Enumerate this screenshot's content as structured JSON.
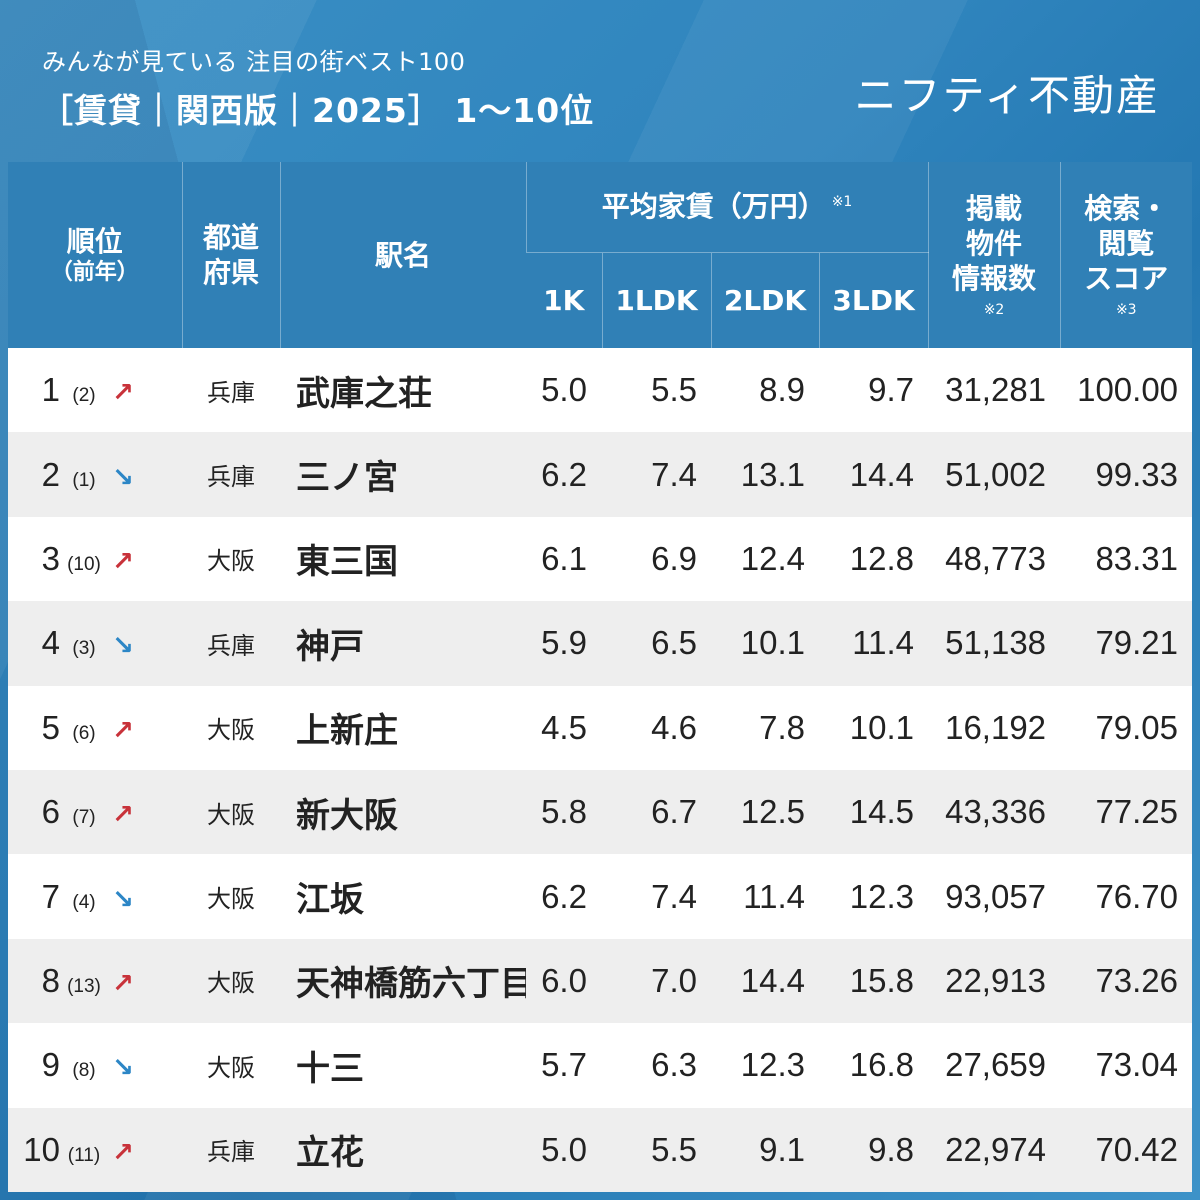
{
  "header": {
    "subtitle": "みんなが見ている 注目の街ベスト100",
    "title": "［賃貸｜関西版｜2025］ 1〜10位",
    "brand": "ニフティ不動産"
  },
  "columns": {
    "rank": "順位",
    "rank_sub": "（前年）",
    "pref_line1": "都道",
    "pref_line2": "府県",
    "station": "駅名",
    "rent_group": "平均家賃（万円）",
    "rent_note": "※1",
    "k1": "1K",
    "ldk1": "1LDK",
    "ldk2": "2LDK",
    "ldk3": "3LDK",
    "listings_l1": "掲載",
    "listings_l2": "物件",
    "listings_l3": "情報数",
    "listings_note": "※2",
    "score_l1": "検索・",
    "score_l2": "閲覧",
    "score_l3": "スコア",
    "score_note": "※3"
  },
  "rows": [
    {
      "rank": "1",
      "prev": "(2)",
      "trend": "up",
      "arrow": "↗",
      "pref": "兵庫",
      "station": "武庫之荘",
      "k1": "5.0",
      "ldk1": "5.5",
      "ldk2": "8.9",
      "ldk3": "9.7",
      "listings": "31,281",
      "score": "100.00"
    },
    {
      "rank": "2",
      "prev": "(1)",
      "trend": "down",
      "arrow": "↘",
      "pref": "兵庫",
      "station": "三ノ宮",
      "k1": "6.2",
      "ldk1": "7.4",
      "ldk2": "13.1",
      "ldk3": "14.4",
      "listings": "51,002",
      "score": "99.33"
    },
    {
      "rank": "3",
      "prev": "(10)",
      "trend": "up",
      "arrow": "↗",
      "pref": "大阪",
      "station": "東三国",
      "k1": "6.1",
      "ldk1": "6.9",
      "ldk2": "12.4",
      "ldk3": "12.8",
      "listings": "48,773",
      "score": "83.31"
    },
    {
      "rank": "4",
      "prev": "(3)",
      "trend": "down",
      "arrow": "↘",
      "pref": "兵庫",
      "station": "神戸",
      "k1": "5.9",
      "ldk1": "6.5",
      "ldk2": "10.1",
      "ldk3": "11.4",
      "listings": "51,138",
      "score": "79.21"
    },
    {
      "rank": "5",
      "prev": "(6)",
      "trend": "up",
      "arrow": "↗",
      "pref": "大阪",
      "station": "上新庄",
      "k1": "4.5",
      "ldk1": "4.6",
      "ldk2": "7.8",
      "ldk3": "10.1",
      "listings": "16,192",
      "score": "79.05"
    },
    {
      "rank": "6",
      "prev": "(7)",
      "trend": "up",
      "arrow": "↗",
      "pref": "大阪",
      "station": "新大阪",
      "k1": "5.8",
      "ldk1": "6.7",
      "ldk2": "12.5",
      "ldk3": "14.5",
      "listings": "43,336",
      "score": "77.25"
    },
    {
      "rank": "7",
      "prev": "(4)",
      "trend": "down",
      "arrow": "↘",
      "pref": "大阪",
      "station": "江坂",
      "k1": "6.2",
      "ldk1": "7.4",
      "ldk2": "11.4",
      "ldk3": "12.3",
      "listings": "93,057",
      "score": "76.70"
    },
    {
      "rank": "8",
      "prev": "(13)",
      "trend": "up",
      "arrow": "↗",
      "pref": "大阪",
      "station": "天神橋筋六丁目",
      "k1": "6.0",
      "ldk1": "7.0",
      "ldk2": "14.4",
      "ldk3": "15.8",
      "listings": "22,913",
      "score": "73.26"
    },
    {
      "rank": "9",
      "prev": "(8)",
      "trend": "down",
      "arrow": "↘",
      "pref": "大阪",
      "station": "十三",
      "k1": "5.7",
      "ldk1": "6.3",
      "ldk2": "12.3",
      "ldk3": "16.8",
      "listings": "27,659",
      "score": "73.04"
    },
    {
      "rank": "10",
      "prev": "(11)",
      "trend": "up",
      "arrow": "↗",
      "pref": "兵庫",
      "station": "立花",
      "k1": "5.0",
      "ldk1": "5.5",
      "ldk2": "9.1",
      "ldk3": "9.8",
      "listings": "22,974",
      "score": "70.42"
    }
  ],
  "colors": {
    "header_bg": "#3080b6",
    "up_arrow": "#c8323a",
    "down_arrow": "#2c86c6",
    "row_alt": "#eeeeee"
  }
}
